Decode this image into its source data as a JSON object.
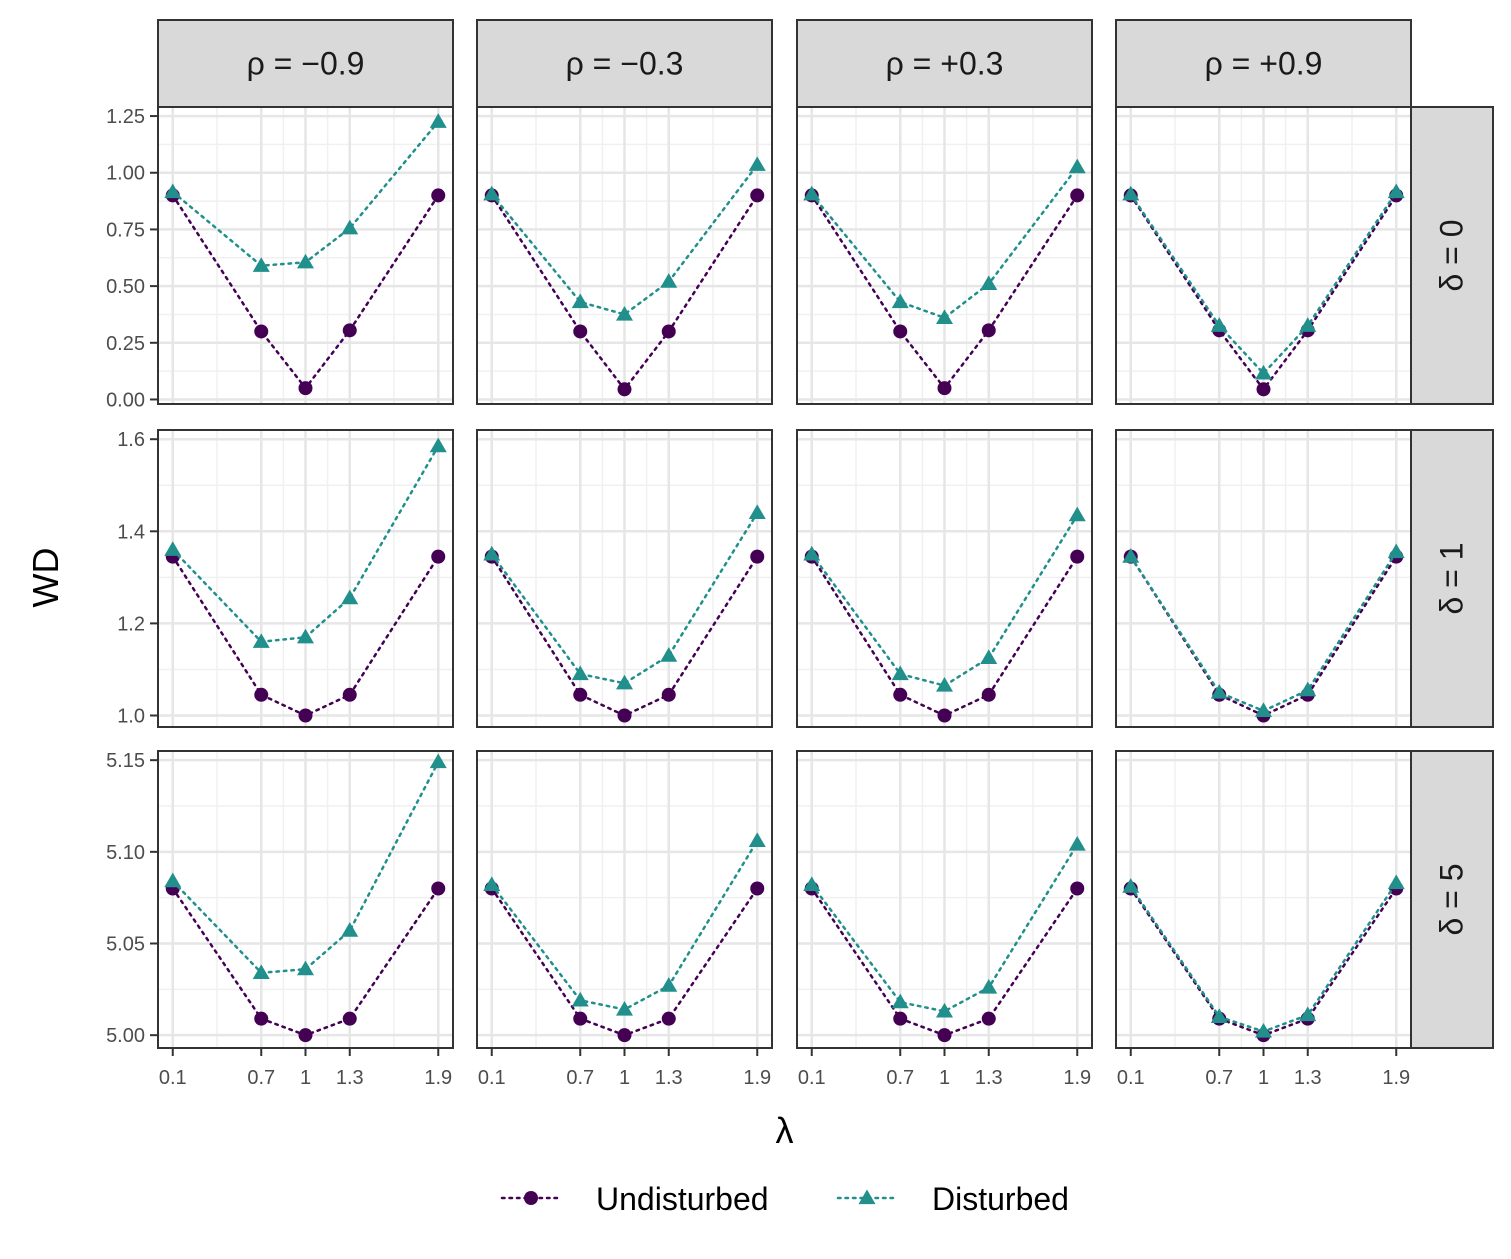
{
  "chart_data": {
    "type": "scatter",
    "xlabel": "λ",
    "ylabel": "WD",
    "x_ticks": [
      "0.1",
      "0.7",
      "1",
      "1.3",
      "1.9"
    ],
    "x_positions": [
      0.1,
      0.7,
      1.0,
      1.3,
      1.9
    ],
    "columns": [
      "ρ = −0.9",
      "ρ = −0.3",
      "ρ = +0.3",
      "ρ = +0.9"
    ],
    "rows": [
      {
        "label": "δ = 0",
        "ylim": [
          -0.02,
          1.29
        ],
        "y_ticks": [
          0.0,
          0.25,
          0.5,
          0.75,
          1.0,
          1.25
        ],
        "y_tick_labels": [
          "0.00",
          "0.25",
          "0.50",
          "0.75",
          "1.00",
          "1.25"
        ],
        "panels": [
          {
            "Undisturbed": [
              0.9,
              0.3,
              0.05,
              0.305,
              0.9
            ],
            "Disturbed": [
              0.915,
              0.59,
              0.605,
              0.755,
              1.225
            ]
          },
          {
            "Undisturbed": [
              0.9,
              0.3,
              0.045,
              0.3,
              0.9
            ],
            "Disturbed": [
              0.905,
              0.43,
              0.375,
              0.52,
              1.035
            ]
          },
          {
            "Undisturbed": [
              0.9,
              0.3,
              0.05,
              0.305,
              0.9
            ],
            "Disturbed": [
              0.905,
              0.43,
              0.36,
              0.51,
              1.025
            ]
          },
          {
            "Undisturbed": [
              0.9,
              0.305,
              0.045,
              0.305,
              0.9
            ],
            "Disturbed": [
              0.905,
              0.325,
              0.115,
              0.325,
              0.915
            ]
          }
        ]
      },
      {
        "label": "δ = 1",
        "ylim": [
          0.975,
          1.62
        ],
        "y_ticks": [
          1.0,
          1.2,
          1.4,
          1.6
        ],
        "y_tick_labels": [
          "1.0",
          "1.2",
          "1.4",
          "1.6"
        ],
        "panels": [
          {
            "Undisturbed": [
              1.345,
              1.045,
              1.0,
              1.045,
              1.345
            ],
            "Disturbed": [
              1.36,
              1.16,
              1.17,
              1.255,
              1.585
            ]
          },
          {
            "Undisturbed": [
              1.345,
              1.045,
              1.0,
              1.045,
              1.345
            ],
            "Disturbed": [
              1.35,
              1.09,
              1.07,
              1.13,
              1.44
            ]
          },
          {
            "Undisturbed": [
              1.345,
              1.045,
              1.0,
              1.045,
              1.345
            ],
            "Disturbed": [
              1.35,
              1.09,
              1.065,
              1.125,
              1.435
            ]
          },
          {
            "Undisturbed": [
              1.345,
              1.045,
              1.0,
              1.045,
              1.345
            ],
            "Disturbed": [
              1.345,
              1.05,
              1.01,
              1.055,
              1.355
            ]
          }
        ]
      },
      {
        "label": "δ = 5",
        "ylim": [
          4.993,
          5.155
        ],
        "y_ticks": [
          5.0,
          5.05,
          5.1,
          5.15
        ],
        "y_tick_labels": [
          "5.00",
          "5.05",
          "5.10",
          "5.15"
        ],
        "panels": [
          {
            "Undisturbed": [
              5.08,
              5.009,
              5.0,
              5.009,
              5.08
            ],
            "Disturbed": [
              5.084,
              5.034,
              5.036,
              5.057,
              5.149
            ]
          },
          {
            "Undisturbed": [
              5.08,
              5.009,
              5.0,
              5.009,
              5.08
            ],
            "Disturbed": [
              5.082,
              5.019,
              5.014,
              5.027,
              5.106
            ]
          },
          {
            "Undisturbed": [
              5.08,
              5.009,
              5.0,
              5.009,
              5.08
            ],
            "Disturbed": [
              5.082,
              5.018,
              5.013,
              5.026,
              5.104
            ]
          },
          {
            "Undisturbed": [
              5.08,
              5.009,
              5.0,
              5.009,
              5.08
            ],
            "Disturbed": [
              5.081,
              5.01,
              5.002,
              5.011,
              5.083
            ]
          }
        ]
      }
    ],
    "series": [
      {
        "name": "Undisturbed",
        "color": "#440154",
        "marker": "circle",
        "linestyle": "dotted"
      },
      {
        "name": "Disturbed",
        "color": "#21908C",
        "marker": "triangle",
        "linestyle": "dotted"
      }
    ],
    "legend_position": "bottom",
    "grid": true,
    "theme": "bw-facet"
  }
}
